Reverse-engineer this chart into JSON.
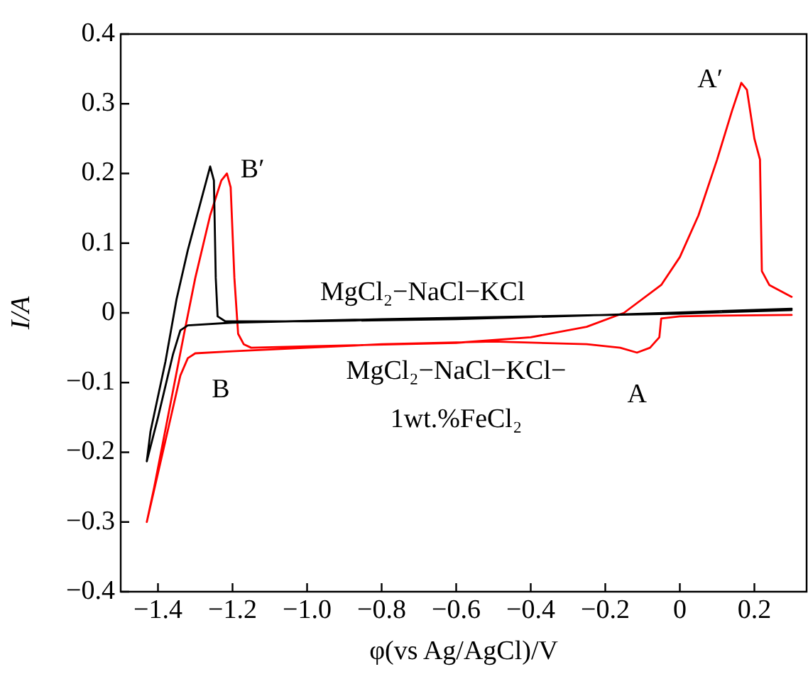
{
  "chart_data": {
    "type": "line",
    "xlabel": "φ(vs Ag/AgCl)/V",
    "ylabel": "I/A",
    "xlim": [
      -1.5,
      0.34
    ],
    "ylim": [
      -0.4,
      0.4
    ],
    "xticks": [
      {
        "value": -1.4,
        "label": "−1.4"
      },
      {
        "value": -1.2,
        "label": "−1.2"
      },
      {
        "value": -1.0,
        "label": "−1.0"
      },
      {
        "value": -0.8,
        "label": "−0.8"
      },
      {
        "value": -0.6,
        "label": "−0.6"
      },
      {
        "value": -0.4,
        "label": "−0.4"
      },
      {
        "value": -0.2,
        "label": "−0.2"
      },
      0,
      0.2
    ],
    "yticks": [
      {
        "value": -0.4,
        "label": "−0.4"
      },
      {
        "value": -0.3,
        "label": "−0.3"
      },
      {
        "value": -0.2,
        "label": "−0.2"
      },
      {
        "value": -0.1,
        "label": "−0.1"
      },
      0,
      0.1,
      0.2,
      0.3,
      0.4
    ],
    "grid": false,
    "legend": false,
    "marker": "none",
    "line_style": "solid",
    "series": [
      {
        "name": "MgCl₂−NaCl−KCl",
        "color": "#000000",
        "x": [
          0.3,
          0.0,
          -0.4,
          -0.8,
          -1.2,
          -1.32,
          -1.34,
          -1.36,
          -1.4,
          -1.43,
          -1.42,
          -1.38,
          -1.35,
          -1.32,
          -1.28,
          -1.26,
          -1.25,
          -1.245,
          -1.24,
          -1.22,
          -1.0,
          -0.6,
          -0.2,
          0.3
        ],
        "values": [
          0.004,
          -0.001,
          -0.005,
          -0.009,
          -0.014,
          -0.018,
          -0.025,
          -0.06,
          -0.15,
          -0.213,
          -0.17,
          -0.07,
          0.02,
          0.09,
          0.17,
          0.21,
          0.19,
          0.05,
          -0.005,
          -0.012,
          -0.012,
          -0.009,
          -0.003,
          0.006
        ]
      },
      {
        "name": "MgCl₂−NaCl−KCl−1wt.%FeCl₂",
        "color": "#ff0000",
        "x": [
          0.3,
          0.1,
          0.0,
          -0.05,
          -0.055,
          -0.08,
          -0.115,
          -0.16,
          -0.25,
          -0.5,
          -0.8,
          -1.0,
          -1.2,
          -1.3,
          -1.32,
          -1.34,
          -1.37,
          -1.4,
          -1.43,
          -1.41,
          -1.37,
          -1.33,
          -1.3,
          -1.26,
          -1.23,
          -1.215,
          -1.205,
          -1.195,
          -1.185,
          -1.17,
          -1.15,
          -1.0,
          -0.6,
          -0.4,
          -0.25,
          -0.15,
          -0.05,
          0.0,
          0.05,
          0.1,
          0.14,
          0.165,
          0.18,
          0.2,
          0.215,
          0.22,
          0.24,
          0.3
        ],
        "values": [
          -0.003,
          -0.004,
          -0.005,
          -0.008,
          -0.035,
          -0.05,
          -0.057,
          -0.05,
          -0.045,
          -0.041,
          -0.045,
          -0.05,
          -0.055,
          -0.058,
          -0.065,
          -0.09,
          -0.16,
          -0.23,
          -0.3,
          -0.25,
          -0.14,
          -0.03,
          0.05,
          0.14,
          0.19,
          0.2,
          0.18,
          0.05,
          -0.03,
          -0.045,
          -0.05,
          -0.048,
          -0.043,
          -0.035,
          -0.02,
          0.0,
          0.04,
          0.08,
          0.14,
          0.22,
          0.29,
          0.33,
          0.32,
          0.25,
          0.22,
          0.06,
          0.04,
          0.023
        ]
      }
    ],
    "annotations": [
      {
        "text": "A′",
        "x": 0.165,
        "y": 0.33
      },
      {
        "text": "B′",
        "x": -1.215,
        "y": 0.2
      },
      {
        "text": "A",
        "x": -0.115,
        "y": -0.057
      },
      {
        "text": "B",
        "x": -1.3,
        "y": -0.058
      }
    ]
  }
}
